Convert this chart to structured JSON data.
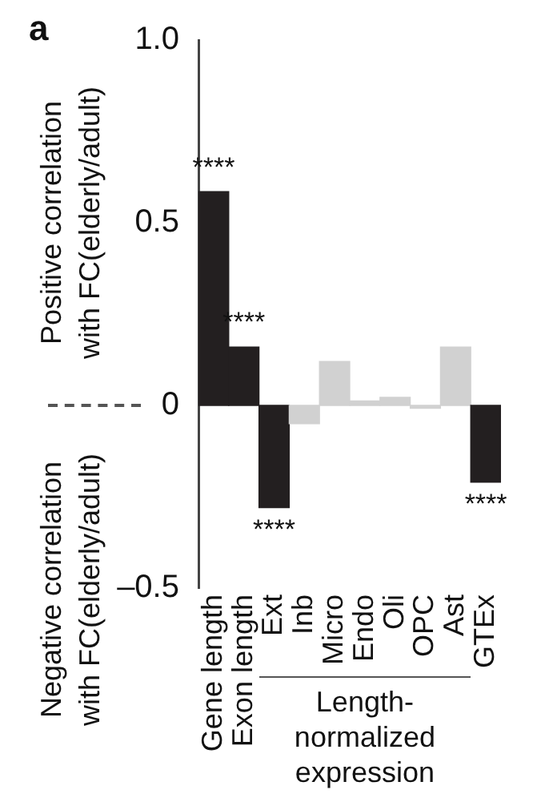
{
  "chart_data": {
    "type": "bar",
    "ylabel": "Positive correlation with FC(elderly/adult)",
    "categories": [
      "Gene length",
      "Exon length",
      "Ext",
      "Inb",
      "Micro",
      "Endo",
      "Oli",
      "OPC",
      "Ast",
      "GTEx"
    ],
    "values": [
      0.585,
      0.16,
      -0.28,
      -0.05,
      0.12,
      0.012,
      0.022,
      -0.008,
      0.16,
      -0.21
    ],
    "colors": [
      "#231f20",
      "#231f20",
      "#231f20",
      "#d1d1d1",
      "#d1d1d1",
      "#d1d1d1",
      "#d1d1d1",
      "#d1d1d1",
      "#d1d1d1",
      "#231f20"
    ],
    "ylim": [
      -0.5,
      1
    ],
    "yticks": [
      {
        "value": -0.5,
        "label": "–0.5"
      },
      0,
      0.5,
      {
        "value": 1,
        "label": "1.0"
      }
    ],
    "grid": false,
    "legend": false,
    "annotations": [
      "a",
      "Negative correlation with FC(elderly/adult)",
      "Length-normalized expression",
      {
        "text": "****",
        "x": "Gene length",
        "y": 0.585
      },
      {
        "text": "****",
        "x": "Exon length",
        "y": 0.16
      },
      {
        "text": "****",
        "x": "Ext",
        "y": -0.28
      },
      {
        "text": "****",
        "x": "GTEx",
        "y": -0.21
      }
    ]
  }
}
